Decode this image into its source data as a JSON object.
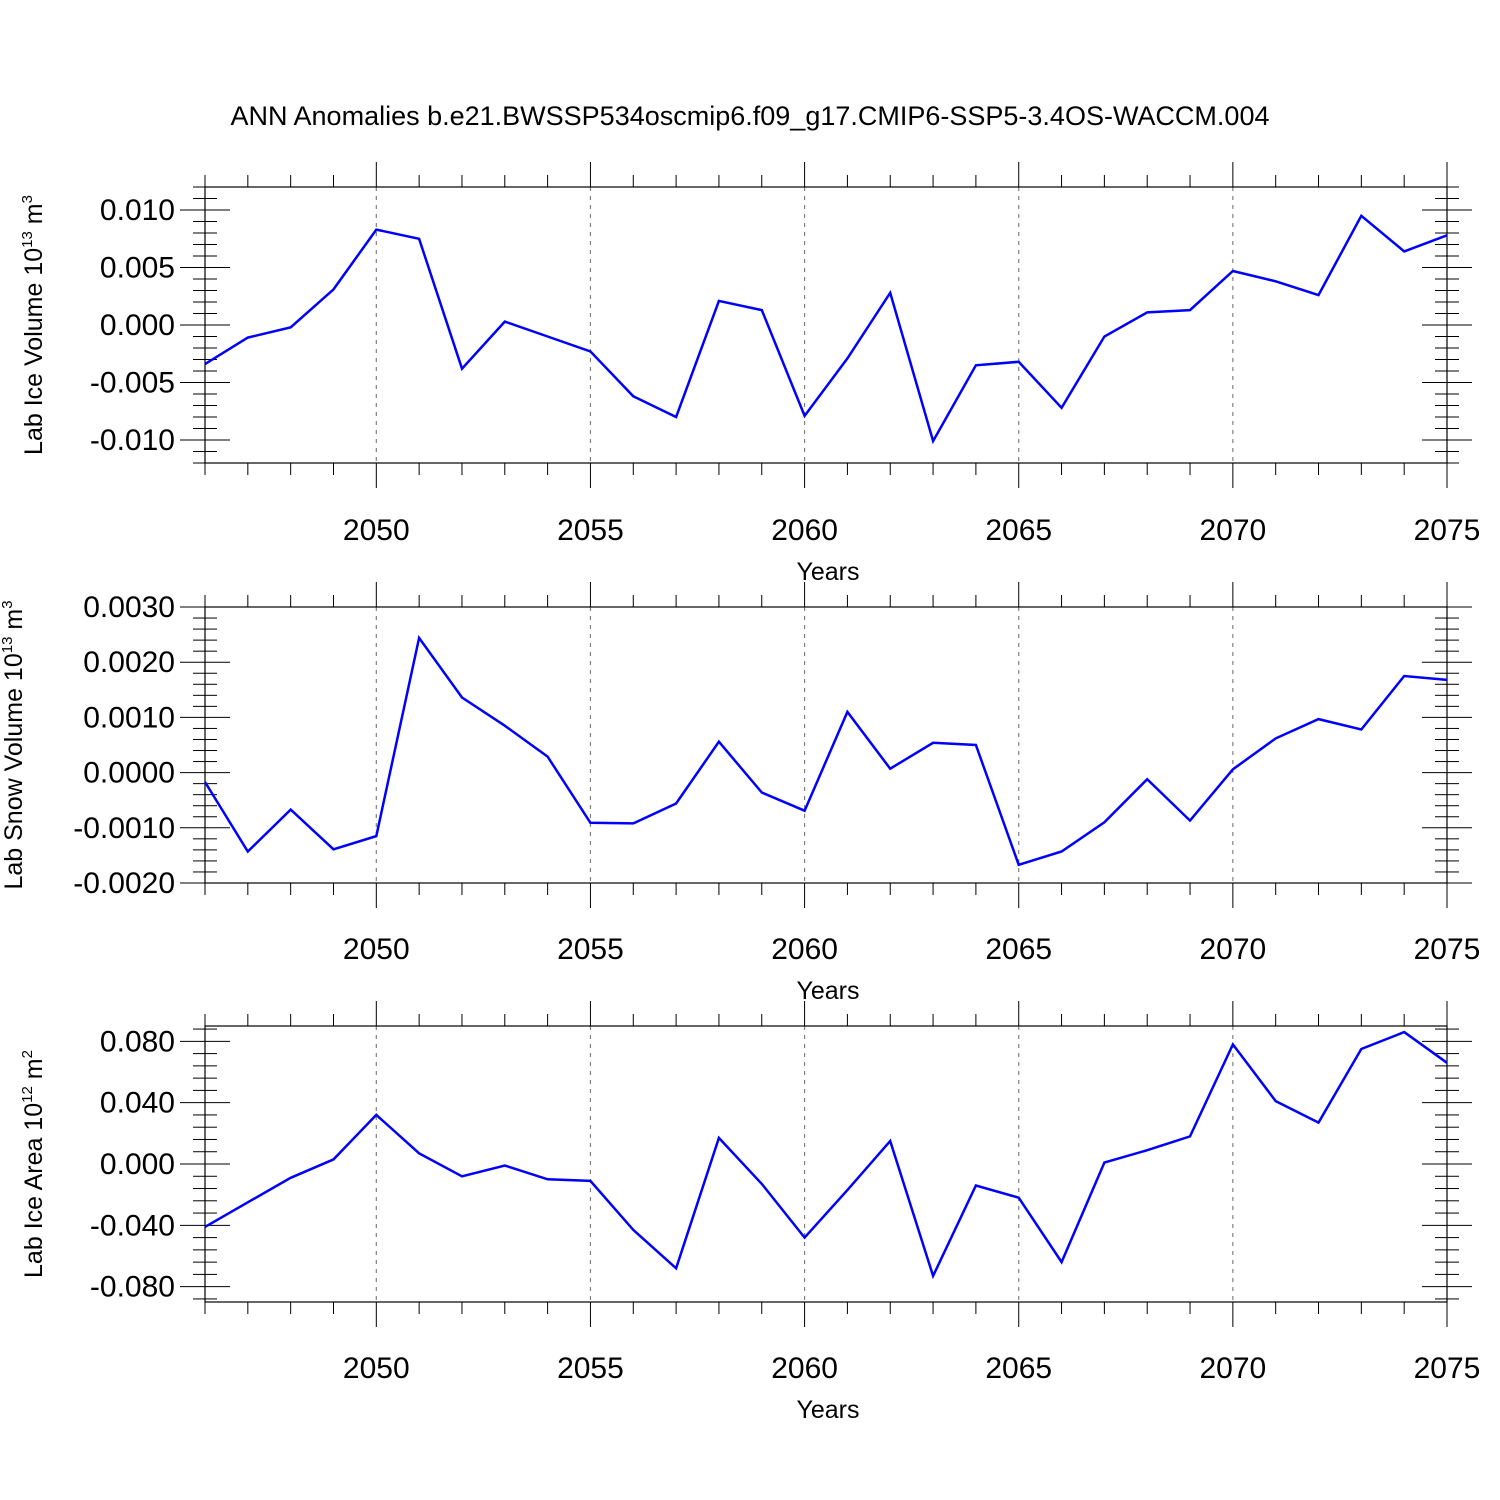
{
  "title": "ANN Anomalies b.e21.BWSSP534oscmip6.f09_g17.CMIP6-SSP5-3.4OS-WACCM.004",
  "colors": {
    "line": "#0000ff",
    "axis": "#000000",
    "grid": "#808080"
  },
  "chart_data": [
    {
      "type": "line",
      "name": "ice-volume",
      "xlabel": "Years",
      "ylabel": {
        "text": "Lab Ice Volume 10",
        "sup": "13",
        "unit": " m",
        "unit_sup": "3"
      },
      "xlim": [
        2046,
        2075
      ],
      "ylim": [
        -0.012,
        0.012
      ],
      "yticks": [
        0.01,
        0.005,
        0.0,
        -0.005,
        -0.01
      ],
      "ytick_labels": [
        "0.010",
        "0.005",
        "0.000",
        "-0.005",
        "-0.010"
      ],
      "xticks": [
        2050,
        2055,
        2060,
        2065,
        2070,
        2075
      ],
      "xtick_labels": [
        "2050",
        "2055",
        "2060",
        "2065",
        "2070",
        "2075"
      ],
      "x": [
        2046,
        2047,
        2048,
        2049,
        2050,
        2051,
        2052,
        2053,
        2054,
        2055,
        2056,
        2057,
        2058,
        2059,
        2060,
        2061,
        2062,
        2063,
        2064,
        2065,
        2066,
        2067,
        2068,
        2069,
        2070,
        2071,
        2072,
        2073,
        2074,
        2075
      ],
      "values": [
        -0.0034,
        -0.0011,
        -0.0002,
        0.0031,
        0.0083,
        0.0075,
        -0.0038,
        0.0003,
        -0.001,
        -0.0023,
        -0.0062,
        -0.008,
        0.0021,
        0.0013,
        -0.0079,
        -0.0029,
        0.0028,
        -0.0101,
        -0.0035,
        -0.0032,
        -0.0072,
        -0.001,
        0.0011,
        0.0013,
        0.0047,
        0.0038,
        0.0026,
        0.0095,
        0.0064,
        0.0078
      ]
    },
    {
      "type": "line",
      "name": "snow-volume",
      "xlabel": "Years",
      "ylabel": {
        "text": "Lab Snow Volume 10",
        "sup": "13",
        "unit": " m",
        "unit_sup": "3"
      },
      "xlim": [
        2046,
        2075
      ],
      "ylim": [
        -0.002,
        0.003
      ],
      "yticks": [
        0.003,
        0.002,
        0.001,
        0.0,
        -0.001,
        -0.002
      ],
      "ytick_labels": [
        "0.0030",
        "0.0020",
        "0.0010",
        "0.0000",
        "-0.0010",
        "-0.0020"
      ],
      "xticks": [
        2050,
        2055,
        2060,
        2065,
        2070,
        2075
      ],
      "xtick_labels": [
        "2050",
        "2055",
        "2060",
        "2065",
        "2070",
        "2075"
      ],
      "x": [
        2046,
        2047,
        2048,
        2049,
        2050,
        2051,
        2052,
        2053,
        2054,
        2055,
        2056,
        2057,
        2058,
        2059,
        2060,
        2061,
        2062,
        2063,
        2064,
        2065,
        2066,
        2067,
        2068,
        2069,
        2070,
        2071,
        2072,
        2073,
        2074,
        2075
      ],
      "values": [
        -0.00017,
        -0.00143,
        -0.00067,
        -0.00139,
        -0.00115,
        0.00244,
        0.00136,
        0.00085,
        0.00029,
        -0.00091,
        -0.00092,
        -0.00056,
        0.00056,
        -0.00036,
        -0.00069,
        0.0011,
        7e-05,
        0.00054,
        0.0005,
        -0.00167,
        -0.00143,
        -0.0009,
        -0.00012,
        -0.00087,
        6e-05,
        0.00062,
        0.00097,
        0.00078,
        0.00175,
        0.00168
      ]
    },
    {
      "type": "line",
      "name": "ice-area",
      "xlabel": "Years",
      "ylabel": {
        "text": "Lab Ice Area 10",
        "sup": "12",
        "unit": " m",
        "unit_sup": "2"
      },
      "xlim": [
        2046,
        2075
      ],
      "ylim": [
        -0.09,
        0.09
      ],
      "yticks": [
        0.08,
        0.04,
        0.0,
        -0.04,
        -0.08
      ],
      "ytick_labels": [
        "0.080",
        "0.040",
        "0.000",
        "-0.040",
        "-0.080"
      ],
      "xticks": [
        2050,
        2055,
        2060,
        2065,
        2070,
        2075
      ],
      "xtick_labels": [
        "2050",
        "2055",
        "2060",
        "2065",
        "2070",
        "2075"
      ],
      "x": [
        2046,
        2047,
        2048,
        2049,
        2050,
        2051,
        2052,
        2053,
        2054,
        2055,
        2056,
        2057,
        2058,
        2059,
        2060,
        2061,
        2062,
        2063,
        2064,
        2065,
        2066,
        2067,
        2068,
        2069,
        2070,
        2071,
        2072,
        2073,
        2074,
        2075
      ],
      "values": [
        -0.041,
        -0.025,
        -0.009,
        0.003,
        0.032,
        0.007,
        -0.008,
        -0.001,
        -0.01,
        -0.011,
        -0.043,
        -0.068,
        0.017,
        -0.013,
        -0.048,
        -0.017,
        0.015,
        -0.073,
        -0.014,
        -0.022,
        -0.064,
        0.001,
        0.009,
        0.018,
        0.078,
        0.041,
        0.027,
        0.075,
        0.086,
        0.066
      ]
    }
  ]
}
